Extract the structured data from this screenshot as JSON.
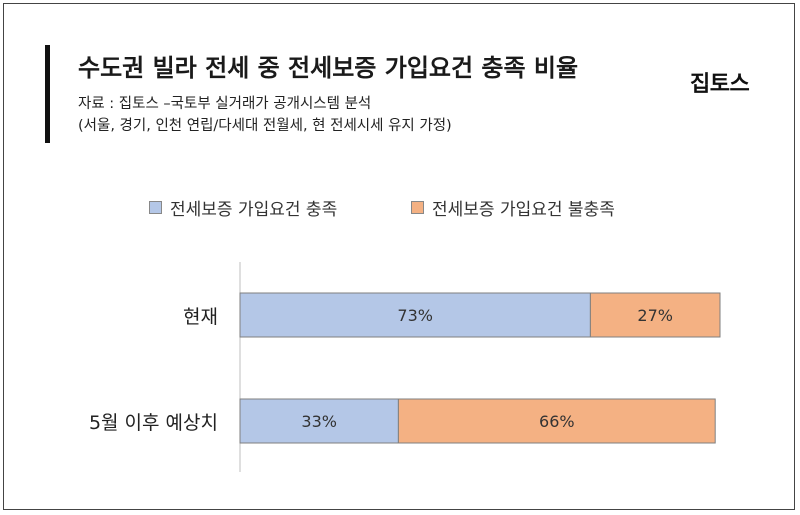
{
  "header": {
    "title": "수도권 빌라 전세 중 전세보증 가입요건 충족 비율",
    "source": "자료 : 집토스 –국토부 실거래가 공개시스템 분석",
    "note": "(서울, 경기, 인천 연립/다세대 전월세, 현 전세시세 유지 가정)",
    "logo": "집토스"
  },
  "colors": {
    "met": "#b4c7e7",
    "unmet": "#f4b183",
    "bar_border": "#7f7f7f"
  },
  "chart_data": {
    "type": "bar",
    "orientation": "horizontal",
    "stacked": true,
    "categories": [
      "현재",
      "5월 이후 예상치"
    ],
    "series": [
      {
        "name": "전세보증 가입요건 충족",
        "values": [
          73,
          33
        ],
        "labels": [
          "73%",
          "33%"
        ]
      },
      {
        "name": "전세보증 가입요건 불충족",
        "values": [
          27,
          66
        ],
        "labels": [
          "27%",
          "66%"
        ]
      }
    ],
    "title": "수도권 빌라 전세 중 전세보증 가입요건 충족 비율",
    "xlabel": "",
    "ylabel": "",
    "xlim": [
      0,
      100
    ],
    "legend_position": "top",
    "grid": false
  }
}
